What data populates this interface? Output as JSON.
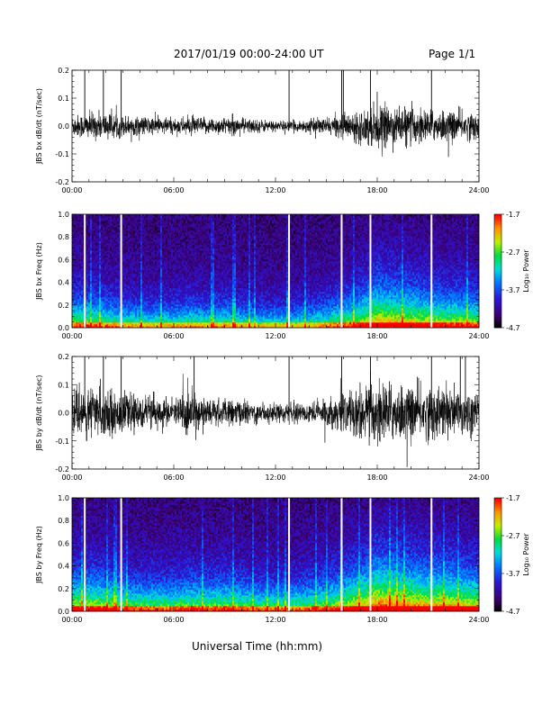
{
  "header": {
    "title": "2017/01/19  00:00-24:00 UT",
    "page": "Page 1/1"
  },
  "chart_data": [
    {
      "type": "line",
      "ylabel": "JBS bx dB/dt (nT/sec)",
      "xlabel": "",
      "xlim": [
        0,
        24
      ],
      "ylim": [
        -0.2,
        0.2
      ],
      "x_tick_labels": [
        "00:00",
        "06:00",
        "12:00",
        "18:00",
        "24:00"
      ],
      "y_tick_labels": [
        "-0.2",
        "-0.1",
        "0.0",
        "0.1",
        "0.2"
      ],
      "y_ticks": [
        -0.2,
        -0.1,
        0.0,
        0.1,
        0.2
      ],
      "envelope": {
        "hours": [
          0,
          1,
          2,
          3,
          4,
          5,
          6,
          7,
          8,
          9,
          10,
          11,
          12,
          13,
          14,
          15,
          16,
          17,
          18,
          19,
          20,
          21,
          22,
          23,
          24
        ],
        "amplitude": [
          0.04,
          0.05,
          0.05,
          0.04,
          0.035,
          0.035,
          0.03,
          0.035,
          0.03,
          0.035,
          0.03,
          0.025,
          0.02,
          0.02,
          0.025,
          0.03,
          0.04,
          0.06,
          0.08,
          0.07,
          0.07,
          0.06,
          0.06,
          0.055,
          0.05
        ]
      },
      "spikes": [
        0.75,
        1.85,
        2.9,
        12.8,
        15.9,
        16.0,
        17.6,
        21.2
      ]
    },
    {
      "type": "heatmap",
      "ylabel": "JBS bx Freq (Hz)",
      "xlim": [
        0,
        24
      ],
      "ylim": [
        0.0,
        1.0
      ],
      "x_tick_labels": [
        "00:00",
        "06:00",
        "12:00",
        "18:00",
        "24:00"
      ],
      "y_tick_labels": [
        "0.0",
        "0.2",
        "0.4",
        "0.6",
        "0.8",
        "1.0"
      ],
      "y_ticks": [
        0.0,
        0.2,
        0.4,
        0.6,
        0.8,
        1.0
      ],
      "colorbar": {
        "label": "Log₁₀ Power",
        "ticks": [
          "-1.7",
          "-2.7",
          "-3.7",
          "-4.7"
        ],
        "values": [
          -1.7,
          -2.7,
          -3.7,
          -4.7
        ],
        "range": [
          -4.7,
          -1.7
        ]
      },
      "activity": {
        "hours": [
          0,
          1,
          2,
          3,
          4,
          5,
          6,
          7,
          8,
          9,
          10,
          11,
          12,
          13,
          14,
          15,
          16,
          17,
          18,
          19,
          20,
          21,
          22,
          23,
          24
        ],
        "level": [
          0.45,
          0.45,
          0.4,
          0.35,
          0.3,
          0.3,
          0.3,
          0.35,
          0.3,
          0.35,
          0.3,
          0.25,
          0.25,
          0.25,
          0.3,
          0.35,
          0.45,
          0.55,
          0.75,
          0.7,
          0.65,
          0.6,
          0.55,
          0.55,
          0.5
        ]
      },
      "gaps": [
        0.75,
        2.9,
        12.8,
        15.9,
        17.6,
        21.2
      ]
    },
    {
      "type": "line",
      "ylabel": "JBS by dB/dt (nT/sec)",
      "xlabel": "",
      "xlim": [
        0,
        24
      ],
      "ylim": [
        -0.2,
        0.2
      ],
      "x_tick_labels": [
        "00:00",
        "06:00",
        "12:00",
        "18:00",
        "24:00"
      ],
      "y_tick_labels": [
        "-0.2",
        "-0.1",
        "0.0",
        "0.1",
        "0.2"
      ],
      "y_ticks": [
        -0.2,
        -0.1,
        0.0,
        0.1,
        0.2
      ],
      "envelope": {
        "hours": [
          0,
          1,
          2,
          3,
          4,
          5,
          6,
          7,
          8,
          9,
          10,
          11,
          12,
          13,
          14,
          15,
          16,
          17,
          18,
          19,
          20,
          21,
          22,
          23,
          24
        ],
        "amplitude": [
          0.08,
          0.1,
          0.09,
          0.07,
          0.06,
          0.06,
          0.05,
          0.09,
          0.05,
          0.05,
          0.045,
          0.04,
          0.035,
          0.035,
          0.04,
          0.05,
          0.07,
          0.1,
          0.12,
          0.11,
          0.1,
          0.1,
          0.1,
          0.09,
          0.08
        ]
      },
      "spikes": [
        0.75,
        1.85,
        2.9,
        7.2,
        12.8,
        15.9,
        17.6,
        21.2,
        22.9,
        23.2
      ]
    },
    {
      "type": "heatmap",
      "ylabel": "JBS by Freq (Hz)",
      "xlim": [
        0,
        24
      ],
      "ylim": [
        0.0,
        1.0
      ],
      "x_tick_labels": [
        "00:00",
        "06:00",
        "12:00",
        "18:00",
        "24:00"
      ],
      "y_tick_labels": [
        "0.0",
        "0.2",
        "0.4",
        "0.6",
        "0.8",
        "1.0"
      ],
      "y_ticks": [
        0.0,
        0.2,
        0.4,
        0.6,
        0.8,
        1.0
      ],
      "colorbar": {
        "label": "Log₁₀ Power",
        "ticks": [
          "-1.7",
          "-2.7",
          "-3.7",
          "-4.7"
        ],
        "values": [
          -1.7,
          -2.7,
          -3.7,
          -4.7
        ],
        "range": [
          -4.7,
          -1.7
        ]
      },
      "activity": {
        "hours": [
          0,
          1,
          2,
          3,
          4,
          5,
          6,
          7,
          8,
          9,
          10,
          11,
          12,
          13,
          14,
          15,
          16,
          17,
          18,
          19,
          20,
          21,
          22,
          23,
          24
        ],
        "level": [
          0.6,
          0.6,
          0.55,
          0.5,
          0.45,
          0.45,
          0.45,
          0.5,
          0.45,
          0.5,
          0.45,
          0.4,
          0.4,
          0.4,
          0.45,
          0.5,
          0.6,
          0.7,
          0.9,
          0.85,
          0.8,
          0.75,
          0.75,
          0.7,
          0.65
        ]
      },
      "gaps": [
        0.75,
        2.9,
        12.8,
        15.9,
        17.6,
        21.2
      ]
    }
  ],
  "footer": {
    "xlabel": "Universal Time (hh:mm)"
  }
}
